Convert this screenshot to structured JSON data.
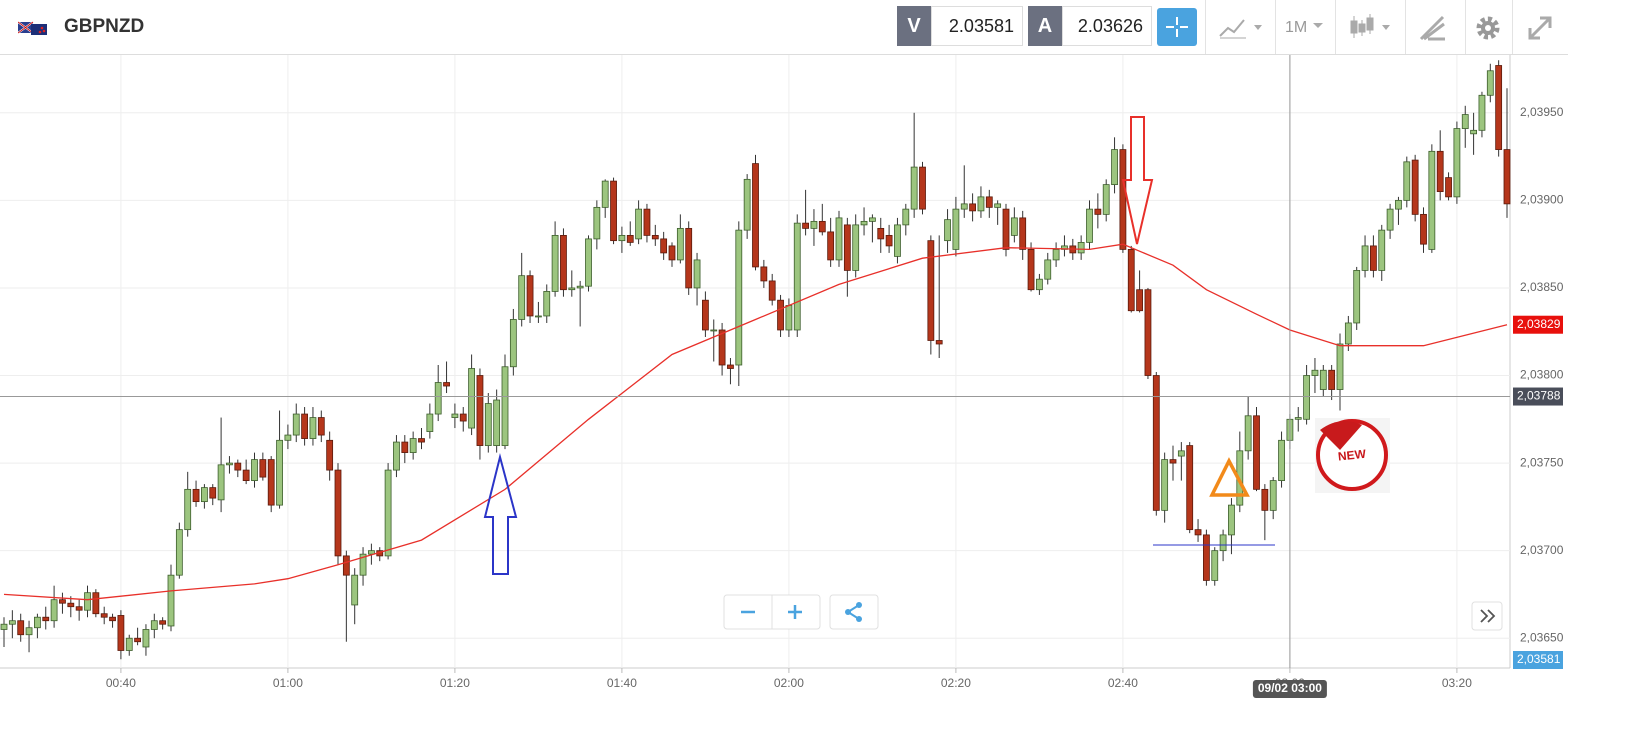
{
  "header": {
    "symbol": "GBPNZD",
    "bid_tag": "V",
    "bid": "2.03581",
    "ask_tag": "A",
    "ask": "2.03626",
    "interval": "1M"
  },
  "chart_data": {
    "type": "candlestick",
    "xlim": [
      "00:26",
      "03:26"
    ],
    "xticks": [
      "00:40",
      "01:00",
      "01:20",
      "01:40",
      "02:00",
      "02:20",
      "02:40",
      "03:00",
      "03:20"
    ],
    "ylim": [
      2.03633,
      2.03983
    ],
    "yticks": [
      {
        "value": 2.0365,
        "label": "2,03650"
      },
      {
        "value": 2.037,
        "label": "2,03700"
      },
      {
        "value": 2.0375,
        "label": "2,03750"
      },
      {
        "value": 2.038,
        "label": "2,03800"
      },
      {
        "value": 2.0385,
        "label": "2,03850"
      },
      {
        "value": 2.039,
        "label": "2,03900"
      },
      {
        "value": 2.0395,
        "label": "2,03950"
      }
    ],
    "grid": true,
    "up_color": "#9cc57f",
    "down_color": "#b5361b",
    "x": [
      "00:26",
      "00:27",
      "00:28",
      "00:29",
      "00:30",
      "00:31",
      "00:32",
      "00:33",
      "00:34",
      "00:35",
      "00:36",
      "00:37",
      "00:38",
      "00:39",
      "00:40",
      "00:41",
      "00:42",
      "00:43",
      "00:44",
      "00:45",
      "00:46",
      "00:47",
      "00:48",
      "00:49",
      "00:50",
      "00:51",
      "00:52",
      "00:53",
      "00:54",
      "00:55",
      "00:56",
      "00:57",
      "00:58",
      "00:59",
      "01:00",
      "01:01",
      "01:02",
      "01:03",
      "01:04",
      "01:05",
      "01:06",
      "01:07",
      "01:08",
      "01:09",
      "01:10",
      "01:11",
      "01:12",
      "01:13",
      "01:14",
      "01:15",
      "01:16",
      "01:17",
      "01:18",
      "01:19",
      "01:20",
      "01:21",
      "01:22",
      "01:23",
      "01:24",
      "01:25",
      "01:26",
      "01:27",
      "01:28",
      "01:29",
      "01:30",
      "01:31",
      "01:32",
      "01:33",
      "01:34",
      "01:35",
      "01:36",
      "01:37",
      "01:38",
      "01:39",
      "01:40",
      "01:41",
      "01:42",
      "01:43",
      "01:44",
      "01:45",
      "01:46",
      "01:47",
      "01:48",
      "01:49",
      "01:50",
      "01:51",
      "01:52",
      "01:53",
      "01:54",
      "01:55",
      "01:56",
      "01:57",
      "01:58",
      "01:59",
      "02:00",
      "02:01",
      "02:02",
      "02:03",
      "02:04",
      "02:05",
      "02:06",
      "02:07",
      "02:08",
      "02:09",
      "02:10",
      "02:11",
      "02:12",
      "02:13",
      "02:14",
      "02:15",
      "02:16",
      "02:17",
      "02:18",
      "02:19",
      "02:20",
      "02:21",
      "02:22",
      "02:23",
      "02:24",
      "02:25",
      "02:26",
      "02:27",
      "02:28",
      "02:29",
      "02:30",
      "02:31",
      "02:32",
      "02:33",
      "02:34",
      "02:35",
      "02:36",
      "02:37",
      "02:38",
      "02:39",
      "02:40",
      "02:41",
      "02:42",
      "02:43",
      "02:44",
      "02:45",
      "02:46",
      "02:47",
      "02:48",
      "02:49",
      "02:50",
      "02:51",
      "02:52",
      "02:53",
      "02:54",
      "02:55",
      "02:56",
      "02:57",
      "02:58",
      "02:59",
      "03:00",
      "03:01",
      "03:02",
      "03:03",
      "03:04",
      "03:05",
      "03:06",
      "03:07",
      "03:08",
      "03:09",
      "03:10",
      "03:11",
      "03:12",
      "03:13",
      "03:14",
      "03:15",
      "03:16",
      "03:17",
      "03:18",
      "03:19",
      "03:20",
      "03:21",
      "03:22",
      "03:23",
      "03:24",
      "03:25",
      "03:26"
    ],
    "ohlc": [
      [
        2.03655,
        2.03662,
        2.03645,
        2.03658
      ],
      [
        2.03658,
        2.03666,
        2.0365,
        2.0366
      ],
      [
        2.0366,
        2.03664,
        2.03648,
        2.03652
      ],
      [
        2.03652,
        2.0366,
        2.03642,
        2.03656
      ],
      [
        2.03656,
        2.03664,
        2.0365,
        2.03662
      ],
      [
        2.03662,
        2.03668,
        2.03655,
        2.0366
      ],
      [
        2.0366,
        2.0368,
        2.03656,
        2.03672
      ],
      [
        2.03672,
        2.03676,
        2.03664,
        2.0367
      ],
      [
        2.0367,
        2.03674,
        2.03662,
        2.03668
      ],
      [
        2.03668,
        2.03672,
        2.0366,
        2.03666
      ],
      [
        2.03666,
        2.0368,
        2.03662,
        2.03676
      ],
      [
        2.03676,
        2.03678,
        2.03662,
        2.03664
      ],
      [
        2.03664,
        2.03668,
        2.03658,
        2.03662
      ],
      [
        2.03662,
        2.03664,
        2.03656,
        2.0366
      ],
      [
        2.03663,
        2.03666,
        2.03638,
        2.03643
      ],
      [
        2.03643,
        2.03652,
        2.0364,
        2.0365
      ],
      [
        2.0365,
        2.03656,
        2.03646,
        2.03648
      ],
      [
        2.03645,
        2.03658,
        2.0364,
        2.03655
      ],
      [
        2.03655,
        2.03664,
        2.0365,
        2.0366
      ],
      [
        2.0366,
        2.03662,
        2.03655,
        2.03658
      ],
      [
        2.03657,
        2.03692,
        2.03654,
        2.03686
      ],
      [
        2.03686,
        2.03716,
        2.03684,
        2.03712
      ],
      [
        2.03712,
        2.03745,
        2.03708,
        2.03735
      ],
      [
        2.03735,
        2.0374,
        2.03725,
        2.03728
      ],
      [
        2.03728,
        2.03738,
        2.03724,
        2.03736
      ],
      [
        2.03736,
        2.03738,
        2.03726,
        2.0373
      ],
      [
        2.03729,
        2.03776,
        2.03722,
        2.03749
      ],
      [
        2.03749,
        2.03754,
        2.03744,
        2.0375
      ],
      [
        2.0375,
        2.03752,
        2.03742,
        2.03746
      ],
      [
        2.03746,
        2.03752,
        2.03738,
        2.0374
      ],
      [
        2.0374,
        2.03756,
        2.03736,
        2.03752
      ],
      [
        2.03752,
        2.03756,
        2.0374,
        2.03742
      ],
      [
        2.03752,
        2.03754,
        2.03722,
        2.03726
      ],
      [
        2.03726,
        2.0378,
        2.03724,
        2.03763
      ],
      [
        2.03763,
        2.03772,
        2.03758,
        2.03766
      ],
      [
        2.03766,
        2.03784,
        2.03762,
        2.03778
      ],
      [
        2.03778,
        2.03782,
        2.0376,
        2.03764
      ],
      [
        2.03764,
        2.03782,
        2.0376,
        2.03776
      ],
      [
        2.03776,
        2.0378,
        2.03762,
        2.03766
      ],
      [
        2.03763,
        2.03768,
        2.0374,
        2.03746
      ],
      [
        2.03746,
        2.0375,
        2.03692,
        2.03697
      ],
      [
        2.03697,
        2.037,
        2.03648,
        2.03686
      ],
      [
        2.03669,
        2.0369,
        2.03658,
        2.03686
      ],
      [
        2.03686,
        2.03702,
        2.0368,
        2.03698
      ],
      [
        2.03698,
        2.03704,
        2.03692,
        2.037
      ],
      [
        2.037,
        2.03702,
        2.03694,
        2.03697
      ],
      [
        2.03697,
        2.0375,
        2.03695,
        2.03746
      ],
      [
        2.03746,
        2.03766,
        2.03742,
        2.03762
      ],
      [
        2.03762,
        2.03766,
        2.0375,
        2.03756
      ],
      [
        2.03756,
        2.03768,
        2.03752,
        2.03764
      ],
      [
        2.03764,
        2.0377,
        2.03758,
        2.03762
      ],
      [
        2.03768,
        2.03784,
        2.03764,
        2.03778
      ],
      [
        2.03778,
        2.03806,
        2.03774,
        2.03796
      ],
      [
        2.03796,
        2.03808,
        2.0379,
        2.03794
      ],
      [
        2.03776,
        2.03784,
        2.0377,
        2.03778
      ],
      [
        2.03778,
        2.03782,
        2.03768,
        2.03774
      ],
      [
        2.0377,
        2.03812,
        2.03766,
        2.03804
      ],
      [
        2.038,
        2.03804,
        2.03752,
        2.0376
      ],
      [
        2.0376,
        2.0379,
        2.03756,
        2.03784
      ],
      [
        2.0376,
        2.03792,
        2.03756,
        2.03786
      ],
      [
        2.0376,
        2.03812,
        2.03758,
        2.03805
      ],
      [
        2.03805,
        2.03838,
        2.038,
        2.03832
      ],
      [
        2.03832,
        2.0387,
        2.03828,
        2.03857
      ],
      [
        2.03857,
        2.0386,
        2.0383,
        2.03834
      ],
      [
        2.03834,
        2.03842,
        2.0383,
        2.03834
      ],
      [
        2.03834,
        2.03852,
        2.0383,
        2.03848
      ],
      [
        2.03848,
        2.03888,
        2.03845,
        2.0388
      ],
      [
        2.0388,
        2.03884,
        2.03845,
        2.03849
      ],
      [
        2.03849,
        2.0386,
        2.03845,
        2.0385
      ],
      [
        2.0385,
        2.03854,
        2.03828,
        2.03851
      ],
      [
        2.03851,
        2.0388,
        2.03848,
        2.03878
      ],
      [
        2.03878,
        2.039,
        2.03872,
        2.03896
      ],
      [
        2.03896,
        2.03912,
        2.0389,
        2.03911
      ],
      [
        2.03911,
        2.03913,
        2.03875,
        2.03877
      ],
      [
        2.03877,
        2.03885,
        2.0387,
        2.0388
      ],
      [
        2.0388,
        2.03888,
        2.03874,
        2.03876
      ],
      [
        2.03878,
        2.039,
        2.03875,
        2.03895
      ],
      [
        2.03895,
        2.03898,
        2.03876,
        2.0388
      ],
      [
        2.0388,
        2.03886,
        2.03874,
        2.03878
      ],
      [
        2.03878,
        2.03882,
        2.03866,
        2.0387
      ],
      [
        2.03874,
        2.03876,
        2.03862,
        2.03866
      ],
      [
        2.03866,
        2.03892,
        2.03864,
        2.03884
      ],
      [
        2.03884,
        2.03888,
        2.03846,
        2.0385
      ],
      [
        2.0385,
        2.0387,
        2.0384,
        2.03866
      ],
      [
        2.03843,
        2.03848,
        2.03822,
        2.03826
      ],
      [
        2.03826,
        2.03832,
        2.03808,
        2.03826
      ],
      [
        2.03826,
        2.0383,
        2.038,
        2.03806
      ],
      [
        2.03806,
        2.0381,
        2.03795,
        2.03804
      ],
      [
        2.03806,
        2.03888,
        2.03794,
        2.03883
      ],
      [
        2.03883,
        2.03915,
        2.03878,
        2.03912
      ],
      [
        2.03921,
        2.03926,
        2.0386,
        2.03862
      ],
      [
        2.03862,
        2.03866,
        2.0385,
        2.03854
      ],
      [
        2.03854,
        2.03858,
        2.0384,
        2.03843
      ],
      [
        2.03843,
        2.03846,
        2.03822,
        2.03826
      ],
      [
        2.03826,
        2.03844,
        2.03822,
        2.0384
      ],
      [
        2.03826,
        2.03892,
        2.03822,
        2.03887
      ],
      [
        2.03887,
        2.03906,
        2.0388,
        2.03884
      ],
      [
        2.03884,
        2.03895,
        2.03874,
        2.03888
      ],
      [
        2.03888,
        2.03898,
        2.0388,
        2.03882
      ],
      [
        2.03882,
        2.0389,
        2.03862,
        2.03866
      ],
      [
        2.03866,
        2.03894,
        2.03862,
        2.0389
      ],
      [
        2.03886,
        2.0389,
        2.03845,
        2.0386
      ],
      [
        2.0386,
        2.03892,
        2.03856,
        2.03886
      ],
      [
        2.03886,
        2.03896,
        2.0388,
        2.03888
      ],
      [
        2.03888,
        2.03892,
        2.03876,
        2.0389
      ],
      [
        2.03884,
        2.0389,
        2.0387,
        2.03878
      ],
      [
        2.0388,
        2.03886,
        2.0387,
        2.03874
      ],
      [
        2.03868,
        2.0389,
        2.03864,
        2.03886
      ],
      [
        2.03886,
        2.03898,
        2.0388,
        2.03895
      ],
      [
        2.03895,
        2.0395,
        2.0389,
        2.03919
      ],
      [
        2.03919,
        2.03922,
        2.03892,
        2.03895
      ],
      [
        2.03877,
        2.0388,
        2.03812,
        2.0382
      ],
      [
        2.0382,
        2.0388,
        2.0381,
        2.03818
      ],
      [
        2.03877,
        2.03895,
        2.0387,
        2.03889
      ],
      [
        2.03872,
        2.03902,
        2.03868,
        2.03895
      ],
      [
        2.03895,
        2.0392,
        2.0389,
        2.03898
      ],
      [
        2.03898,
        2.03904,
        2.03888,
        2.03894
      ],
      [
        2.03894,
        2.03908,
        2.0389,
        2.03902
      ],
      [
        2.03902,
        2.03906,
        2.0389,
        2.03896
      ],
      [
        2.03896,
        2.039,
        2.03886,
        2.03898
      ],
      [
        2.03895,
        2.03898,
        2.03868,
        2.03872
      ],
      [
        2.0388,
        2.03896,
        2.03876,
        2.0389
      ],
      [
        2.0389,
        2.03894,
        2.03866,
        2.03872
      ],
      [
        2.03872,
        2.03876,
        2.03848,
        2.03849
      ],
      [
        2.03849,
        2.03858,
        2.03846,
        2.03855
      ],
      [
        2.03855,
        2.0387,
        2.03852,
        2.03866
      ],
      [
        2.03866,
        2.03876,
        2.03862,
        2.03872
      ],
      [
        2.03872,
        2.0388,
        2.03868,
        2.03874
      ],
      [
        2.03874,
        2.03878,
        2.03866,
        2.0387
      ],
      [
        2.0387,
        2.0388,
        2.03866,
        2.03876
      ],
      [
        2.03876,
        2.039,
        2.03872,
        2.03895
      ],
      [
        2.03895,
        2.03904,
        2.03884,
        2.03892
      ],
      [
        2.03892,
        2.03912,
        2.03888,
        2.03909
      ],
      [
        2.03909,
        2.03936,
        2.03904,
        2.03929
      ],
      [
        2.03929,
        2.03932,
        2.0387,
        2.03872
      ],
      [
        2.03872,
        2.03874,
        2.03836,
        2.03837
      ],
      [
        2.03849,
        2.0386,
        2.03836,
        2.03837
      ],
      [
        2.03849,
        2.0385,
        2.03798,
        2.038
      ],
      [
        2.038,
        2.03802,
        2.0372,
        2.03723
      ],
      [
        2.03723,
        2.03756,
        2.03716,
        2.03752
      ],
      [
        2.03752,
        2.0376,
        2.0374,
        2.0375
      ],
      [
        2.03754,
        2.03762,
        2.0374,
        2.03757
      ],
      [
        2.0376,
        2.03762,
        2.0371,
        2.03712
      ],
      [
        2.03712,
        2.03718,
        2.03705,
        2.03709
      ],
      [
        2.03709,
        2.03712,
        2.0368,
        2.03683
      ],
      [
        2.03683,
        2.03702,
        2.0368,
        2.037
      ],
      [
        2.037,
        2.03712,
        2.03694,
        2.03709
      ],
      [
        2.03709,
        2.0373,
        2.03698,
        2.03726
      ],
      [
        2.03726,
        2.03768,
        2.03722,
        2.03757
      ],
      [
        2.03757,
        2.03788,
        2.03752,
        2.03777
      ],
      [
        2.03777,
        2.03782,
        2.03734,
        2.03735
      ],
      [
        2.03735,
        2.03738,
        2.03706,
        2.03723
      ],
      [
        2.03723,
        2.03742,
        2.03718,
        2.0374
      ],
      [
        2.0374,
        2.03768,
        2.03736,
        2.03763
      ],
      [
        2.03763,
        2.03778,
        2.03758,
        2.03775
      ],
      [
        2.03775,
        2.03782,
        2.03768,
        2.03776
      ],
      [
        2.03775,
        2.03806,
        2.03772,
        2.038
      ],
      [
        2.038,
        2.0381,
        2.0379,
        2.03803
      ],
      [
        2.03792,
        2.03806,
        2.03788,
        2.03803
      ],
      [
        2.03803,
        2.03806,
        2.03786,
        2.03792
      ],
      [
        2.03792,
        2.03824,
        2.0378,
        2.03818
      ],
      [
        2.03818,
        2.03834,
        2.03814,
        2.0383
      ],
      [
        2.0383,
        2.03862,
        2.03826,
        2.0386
      ],
      [
        2.0386,
        2.0388,
        2.03856,
        2.03874
      ],
      [
        2.03874,
        2.0388,
        2.03856,
        2.0386
      ],
      [
        2.0386,
        2.03886,
        2.03854,
        2.03883
      ],
      [
        2.03883,
        2.03898,
        2.03878,
        2.03895
      ],
      [
        2.03895,
        2.03902,
        2.03886,
        2.039
      ],
      [
        2.039,
        2.03925,
        2.03896,
        2.03922
      ],
      [
        2.03923,
        2.03926,
        2.03888,
        2.03892
      ],
      [
        2.03892,
        2.03896,
        2.0387,
        2.03875
      ],
      [
        2.03872,
        2.03932,
        2.0387,
        2.03928
      ],
      [
        2.03928,
        2.0394,
        2.039,
        2.03905
      ],
      [
        2.03913,
        2.03916,
        2.039,
        2.03902
      ],
      [
        2.03902,
        2.03945,
        2.03898,
        2.03941
      ],
      [
        2.03941,
        2.03954,
        2.0393,
        2.03949
      ],
      [
        2.03938,
        2.0395,
        2.03926,
        2.0394
      ],
      [
        2.0394,
        2.03962,
        2.03936,
        2.0396
      ],
      [
        2.0396,
        2.03978,
        2.03956,
        2.03974
      ],
      [
        2.03977,
        2.0398,
        2.03925,
        2.03929
      ],
      [
        2.03929,
        2.03964,
        2.0389,
        2.03898
      ]
    ],
    "moving_average": {
      "color": "#e8302a",
      "x": [
        "00:26",
        "00:36",
        "00:46",
        "00:56",
        "01:00",
        "01:06",
        "01:16",
        "01:26",
        "01:36",
        "01:46",
        "01:56",
        "02:06",
        "02:16",
        "02:26",
        "02:36",
        "02:40",
        "02:46",
        "02:50",
        "02:56",
        "03:00",
        "03:06",
        "03:16",
        "03:26"
      ],
      "values": [
        2.03675,
        2.03672,
        2.03677,
        2.03681,
        2.03684,
        2.03692,
        2.03706,
        2.03735,
        2.03775,
        2.03812,
        2.03832,
        2.03852,
        2.03867,
        2.03873,
        2.03872,
        2.03875,
        2.03863,
        2.03849,
        2.03835,
        2.03826,
        2.03817,
        2.03817,
        2.03829
      ]
    },
    "ma_badge": {
      "value": 2.03829,
      "label": "2,03829"
    },
    "crosshair": {
      "x": "03:00",
      "x_label": "09/02 03:00",
      "y": {
        "value": 2.03788,
        "label": "2,03788"
      }
    },
    "bid_badge": "2,03581",
    "sticker": "NEW"
  }
}
